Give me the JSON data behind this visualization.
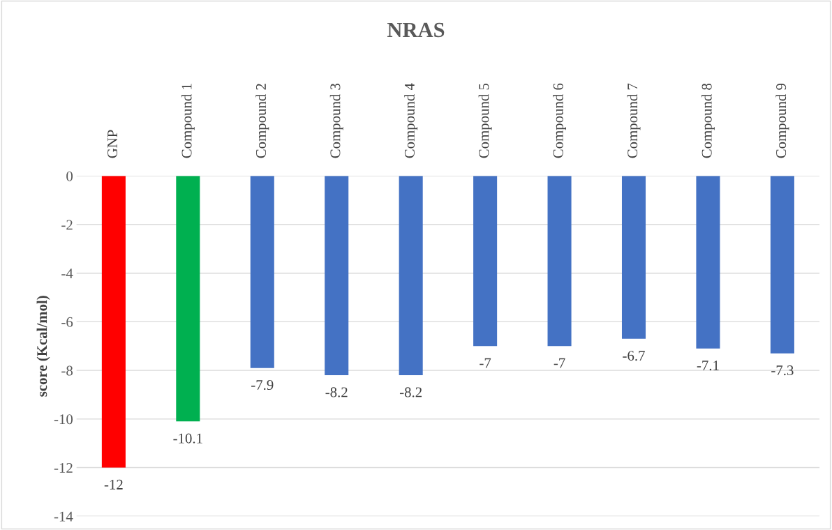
{
  "chart_data": {
    "type": "bar",
    "title": "NRAS",
    "ylabel": "score (Kcal/mol)",
    "categories": [
      "GNP",
      "Compound 1",
      "Compound 2",
      "Compound 3",
      "Compound 4",
      "Compound 5",
      "Compound 6",
      "Compound 7",
      "Compound 8",
      "Compound 9"
    ],
    "values": [
      -12,
      -10.1,
      -7.9,
      -8.2,
      -8.2,
      -7,
      -7,
      -6.7,
      -7.1,
      -7.3
    ],
    "colors": [
      "#ff0000",
      "#00b050",
      "#4472c4",
      "#4472c4",
      "#4472c4",
      "#4472c4",
      "#4472c4",
      "#4472c4",
      "#4472c4",
      "#4472c4"
    ],
    "ylim": [
      -14,
      0
    ],
    "yticks": [
      -14,
      -12,
      -10,
      -8,
      -6,
      -4,
      -2,
      0
    ],
    "grid": "y",
    "data_labels": true,
    "legend": false
  }
}
